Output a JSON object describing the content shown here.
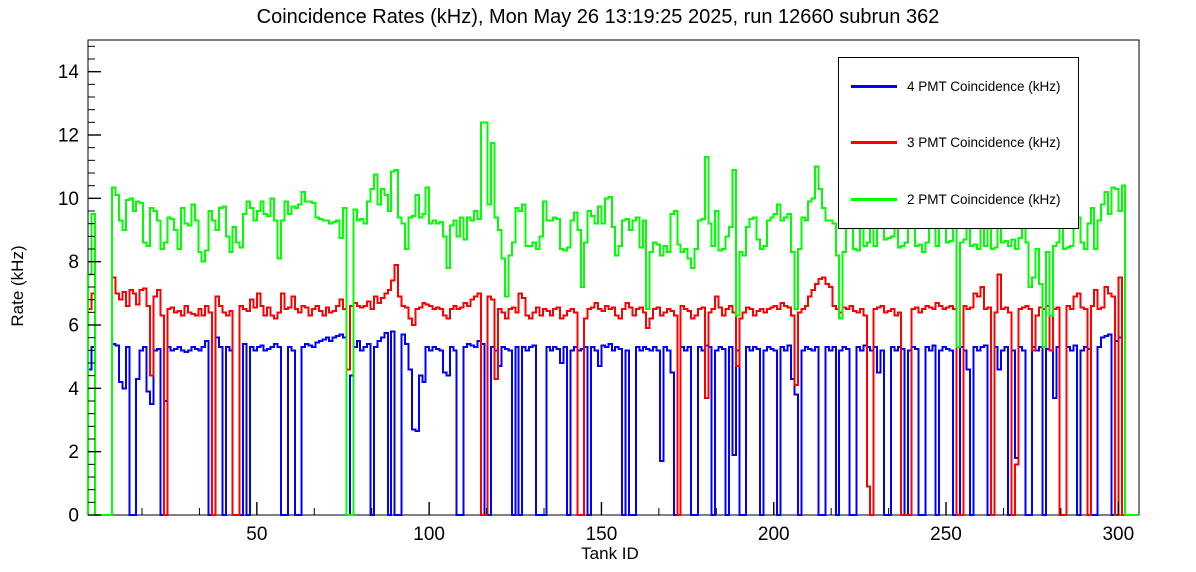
{
  "title": "Coincidence Rates (kHz), Mon May 26 13:19:25 2025, run 12660 subrun 362",
  "chart_data": {
    "type": "line",
    "style": "step-histogram",
    "title": "Coincidence Rates (kHz), Mon May 26 13:19:25 2025, run 12660 subrun 362",
    "xlabel": "Tank ID",
    "ylabel": "Rate (kHz)",
    "xlim": [
      1,
      306
    ],
    "ylim": [
      0,
      15
    ],
    "grid": false,
    "legend_position": "top-right",
    "x_major_ticks": [
      50,
      100,
      150,
      200,
      250,
      300
    ],
    "x_minor_per_major": 3,
    "y_major_ticks": [
      0,
      2,
      4,
      6,
      8,
      10,
      12,
      14
    ],
    "y_minor_step": 0.4,
    "x_start": 1,
    "series": [
      {
        "name": "4 PMT Coincidence (kHz)",
        "color": "#0000ff",
        "values": [
          4.6,
          5.3,
          0,
          0,
          0,
          0,
          0,
          5.4,
          5.35,
          4.2,
          4.0,
          5.3,
          0,
          0,
          4.3,
          5.2,
          5.3,
          3.9,
          3.5,
          5.2,
          5.25,
          0,
          3.6,
          5.3,
          5.2,
          5.25,
          5.3,
          5.2,
          5.15,
          5.2,
          5.3,
          5.25,
          5.2,
          5.3,
          5.5,
          0,
          0,
          5.6,
          5.3,
          0,
          5.3,
          5.2,
          0,
          0,
          0,
          5.4,
          0,
          5.3,
          5.2,
          5.3,
          5.35,
          5.2,
          5.25,
          5.3,
          5.4,
          5.3,
          0,
          0,
          5.3,
          5.2,
          0,
          0,
          5.3,
          5.4,
          5.35,
          5.3,
          5.45,
          5.5,
          5.55,
          5.6,
          5.5,
          5.6,
          5.65,
          5.7,
          5.6,
          0,
          4.4,
          5.3,
          5.5,
          5.2,
          5.3,
          5.4,
          0,
          5.3,
          5.5,
          5.6,
          5.75,
          0,
          5.8,
          0,
          0,
          5.7,
          5.4,
          4.6,
          2.7,
          2.65,
          4.4,
          4.2,
          5.3,
          5.2,
          5.3,
          5.25,
          5.2,
          4.5,
          4.4,
          5.3,
          5.2,
          0,
          0,
          5.3,
          5.4,
          5.35,
          5.3,
          5.5,
          5.4,
          0,
          0,
          5.3,
          5.2,
          4.7,
          5.3,
          5.25,
          5.2,
          0,
          5.3,
          0,
          5.3,
          5.2,
          5.3,
          5.35,
          0,
          0,
          0,
          5.3,
          5.2,
          5.3,
          5.25,
          4.8,
          5.3,
          0,
          5.2,
          5.3,
          5.2,
          5.25,
          5.3,
          0,
          5.3,
          5.2,
          4.7,
          5.35,
          5.3,
          5.4,
          5.2,
          5.3,
          5.25,
          0,
          5.2,
          0,
          0,
          5.3,
          5.2,
          5.3,
          5.25,
          5.2,
          5.3,
          5.2,
          1.7,
          5.3,
          5.2,
          4.5,
          0,
          0,
          5.3,
          5.2,
          5.3,
          0,
          0,
          5.3,
          5.2,
          5.35,
          5.3,
          0,
          5.2,
          5.3,
          5.25,
          0,
          5.3,
          1.9,
          5.2,
          0,
          0,
          5.3,
          5.2,
          5.3,
          5.25,
          0,
          5.2,
          5.3,
          5.25,
          5.2,
          0,
          5.3,
          5.2,
          5.35,
          4.3,
          3.8,
          0,
          5.2,
          5.3,
          5.25,
          5.2,
          5.3,
          0,
          0,
          5.3,
          5.2,
          5.3,
          0,
          5.2,
          5.3,
          5.25,
          0,
          0,
          5.3,
          5.2,
          5.35,
          5.3,
          5.2,
          5.3,
          4.5,
          5.2,
          0,
          0,
          5.3,
          5.2,
          5.3,
          5.25,
          0,
          5.2,
          5.3,
          5.25,
          0,
          0,
          5.3,
          5.2,
          5.35,
          0,
          5.2,
          5.3,
          5.25,
          5.2,
          0,
          0,
          5.3,
          5.2,
          4.6,
          0,
          5.3,
          5.2,
          5.3,
          5.35,
          0,
          0,
          5.3,
          4.6,
          5.2,
          5.3,
          0,
          5.2,
          1.8,
          5.3,
          5.2,
          0,
          0,
          5.3,
          5.2,
          5.3,
          0,
          5.25,
          5.2,
          3.7,
          5.3,
          0,
          0,
          5.3,
          5.2,
          5.35,
          0,
          5.2,
          5.3,
          5.25,
          0,
          0,
          5.3,
          5.6,
          5.65,
          5.7,
          0,
          5.5,
          5.6,
          0,
          0,
          0,
          0,
          0
        ]
      },
      {
        "name": "3 PMT Coincidence (kHz)",
        "color": "#ff0000",
        "values": [
          6.5,
          7.0,
          0,
          0,
          0,
          0,
          0,
          7.5,
          7.0,
          6.8,
          7.05,
          6.6,
          7.1,
          7.0,
          6.65,
          7.1,
          7.15,
          6.6,
          4.4,
          6.9,
          7.1,
          6.3,
          0,
          6.5,
          6.55,
          6.4,
          6.45,
          6.3,
          6.6,
          6.4,
          6.35,
          6.3,
          6.5,
          6.3,
          6.6,
          6.4,
          0,
          6.9,
          6.6,
          6.4,
          6.3,
          6.45,
          0,
          0,
          6.6,
          6.5,
          6.45,
          6.8,
          6.55,
          7.0,
          6.6,
          6.3,
          6.55,
          6.3,
          6.2,
          6.4,
          7.0,
          6.5,
          6.55,
          6.9,
          6.5,
          6.4,
          6.6,
          6.55,
          6.3,
          6.5,
          6.6,
          6.45,
          6.3,
          6.55,
          6.4,
          6.45,
          6.6,
          6.8,
          6.5,
          4.6,
          6.6,
          6.7,
          6.6,
          6.55,
          6.6,
          6.75,
          6.5,
          6.9,
          6.7,
          6.85,
          7.0,
          7.1,
          7.4,
          7.9,
          6.9,
          6.6,
          6.55,
          6.2,
          6.0,
          6.5,
          6.55,
          6.7,
          6.65,
          6.6,
          6.5,
          6.55,
          6.5,
          6.3,
          6.2,
          6.5,
          6.6,
          6.5,
          6.55,
          6.7,
          6.6,
          6.8,
          6.9,
          7.0,
          0,
          0,
          6.9,
          6.8,
          4.3,
          6.5,
          6.4,
          6.2,
          6.5,
          6.55,
          6.4,
          7.0,
          6.85,
          6.3,
          6.2,
          6.4,
          6.55,
          6.3,
          6.5,
          6.45,
          6.3,
          6.5,
          6.55,
          6.2,
          6.3,
          6.45,
          6.5,
          6.4,
          0,
          0,
          6.2,
          6.5,
          6.55,
          6.7,
          6.5,
          6.45,
          6.6,
          6.5,
          6.55,
          6.3,
          6.2,
          6.5,
          6.7,
          6.55,
          6.3,
          6.5,
          6.55,
          6.4,
          5.9,
          6.2,
          6.5,
          6.55,
          6.3,
          6.4,
          6.5,
          6.45,
          6.3,
          0,
          6.6,
          6.5,
          6.45,
          6.2,
          6.3,
          6.5,
          6.55,
          3.7,
          6.4,
          6.5,
          6.9,
          6.55,
          6.3,
          6.5,
          6.6,
          6.4,
          4.7,
          6.2,
          6.4,
          6.55,
          6.5,
          6.3,
          6.45,
          6.5,
          6.4,
          6.5,
          6.55,
          6.6,
          6.5,
          6.7,
          6.6,
          6.55,
          6.3,
          4.1,
          6.4,
          6.5,
          6.6,
          6.9,
          7.1,
          7.3,
          7.45,
          7.5,
          7.3,
          7.2,
          6.6,
          6.5,
          6.4,
          6.55,
          6.5,
          6.6,
          6.45,
          6.4,
          6.5,
          6.3,
          0.9,
          0,
          6.5,
          6.55,
          6.6,
          6.4,
          6.45,
          6.5,
          6.3,
          6.4,
          0,
          0,
          0,
          6.5,
          6.55,
          6.4,
          6.5,
          6.6,
          6.55,
          6.5,
          6.7,
          6.6,
          6.5,
          6.55,
          6.6,
          6.5,
          0,
          0,
          6.6,
          6.5,
          6.55,
          7.0,
          6.9,
          7.2,
          6.5,
          6.55,
          0,
          6.4,
          7.6,
          6.5,
          6.55,
          6.4,
          0,
          1.6,
          6.5,
          6.55,
          6.6,
          6.5,
          5.2,
          6.3,
          6.55,
          6.5,
          6.6,
          5.2,
          6.5,
          6.55,
          0,
          0,
          6.6,
          6.5,
          6.9,
          7.0,
          6.55,
          6.5,
          0,
          6.6,
          7.1,
          6.5,
          6.55,
          7.2,
          7.0,
          6.9,
          0,
          7.5,
          0,
          0,
          0,
          0,
          0
        ]
      },
      {
        "name": "2 PMT Coincidence (kHz)",
        "color": "#00ff00",
        "values": [
          7.6,
          9.5,
          0,
          0,
          0,
          0,
          0,
          10.35,
          10.1,
          9.3,
          9.0,
          9.95,
          10.0,
          9.6,
          9.9,
          9.85,
          8.6,
          8.5,
          9.7,
          9.6,
          9.3,
          8.4,
          8.6,
          9.4,
          9.35,
          9.0,
          8.4,
          9.7,
          9.2,
          9.15,
          9.8,
          9.3,
          8.3,
          8.0,
          8.35,
          9.6,
          9.3,
          9.0,
          9.7,
          9.75,
          8.8,
          8.3,
          9.1,
          8.6,
          8.45,
          9.5,
          9.9,
          9.7,
          9.3,
          9.6,
          9.9,
          9.5,
          9.45,
          10.0,
          9.3,
          8.1,
          9.3,
          9.9,
          9.5,
          9.75,
          9.7,
          9.8,
          10.2,
          9.9,
          9.9,
          9.85,
          9.4,
          9.35,
          9.3,
          9.3,
          9.2,
          9.25,
          9.3,
          8.75,
          9.7,
          0,
          0,
          9.65,
          9.3,
          9.35,
          9.2,
          9.9,
          10.3,
          10.75,
          9.8,
          10.3,
          10.1,
          9.6,
          10.85,
          10.9,
          9.4,
          9.2,
          8.4,
          9.4,
          9.45,
          10.1,
          9.4,
          9.5,
          10.35,
          9.2,
          9.3,
          9.2,
          9.25,
          8.8,
          7.8,
          9.15,
          9.3,
          8.8,
          9.4,
          8.7,
          9.4,
          9.3,
          9.6,
          9.35,
          12.4,
          12.4,
          9.8,
          11.75,
          9.4,
          9.0,
          8.1,
          6.9,
          8.2,
          8.6,
          9.7,
          9.6,
          9.8,
          8.5,
          8.5,
          8.6,
          8.4,
          8.8,
          9.9,
          9.3,
          9.3,
          9.4,
          9.35,
          8.4,
          8.35,
          8.45,
          9.3,
          9.55,
          9.0,
          7.2,
          8.6,
          9.6,
          9.45,
          9.2,
          9.75,
          9.2,
          10.0,
          10.05,
          9.1,
          8.2,
          8.5,
          9.3,
          9.35,
          9.0,
          9.3,
          9.4,
          8.45,
          9.3,
          6.5,
          8.3,
          8.6,
          8.55,
          8.2,
          8.5,
          8.3,
          9.5,
          9.6,
          8.55,
          8.3,
          8.4,
          8.1,
          7.8,
          8.4,
          9.3,
          9.35,
          11.3,
          9.2,
          8.5,
          9.6,
          8.35,
          8.4,
          8.8,
          9.1,
          10.9,
          6.3,
          8.3,
          8.2,
          9.1,
          9.35,
          9.4,
          8.7,
          8.4,
          8.5,
          9.3,
          9.4,
          9.5,
          9.8,
          9.3,
          9.4,
          9.5,
          8.3,
          6.5,
          8.4,
          9.4,
          9.3,
          9.9,
          10.0,
          11.0,
          10.3,
          9.7,
          9.3,
          9.3,
          9.2,
          8.2,
          6.2,
          8.3,
          9.3,
          9.5,
          8.4,
          8.35,
          9.3,
          8.5,
          8.6,
          9.4,
          8.5,
          9.4,
          9.3,
          8.7,
          8.75,
          8.8,
          9.3,
          8.45,
          8.5,
          8.6,
          9.2,
          9.3,
          8.5,
          8.55,
          8.3,
          8.6,
          9.2,
          9.3,
          8.5,
          9.4,
          9.45,
          8.6,
          8.65,
          9.3,
          5.3,
          8.6,
          8.7,
          9.4,
          8.5,
          8.55,
          8.4,
          9.35,
          8.5,
          9.2,
          8.4,
          8.45,
          9.35,
          8.6,
          8.65,
          8.5,
          8.7,
          8.4,
          8.75,
          9.2,
          8.6,
          7.2,
          7.5,
          8.4,
          7.3,
          5.3,
          8.3,
          6.3,
          8.5,
          8.6,
          9.2,
          8.4,
          8.45,
          8.5,
          9.3,
          9.4,
          8.6,
          8.4,
          9.2,
          9.7,
          8.4,
          9.3,
          9.8,
          10.2,
          9.5,
          10.35,
          10.3,
          9.6,
          10.4,
          0,
          0,
          0,
          0
        ]
      }
    ]
  },
  "legend": {
    "entries": [
      "4 PMT Coincidence (kHz)",
      "3 PMT Coincidence (kHz)",
      "2 PMT Coincidence (kHz)"
    ]
  }
}
